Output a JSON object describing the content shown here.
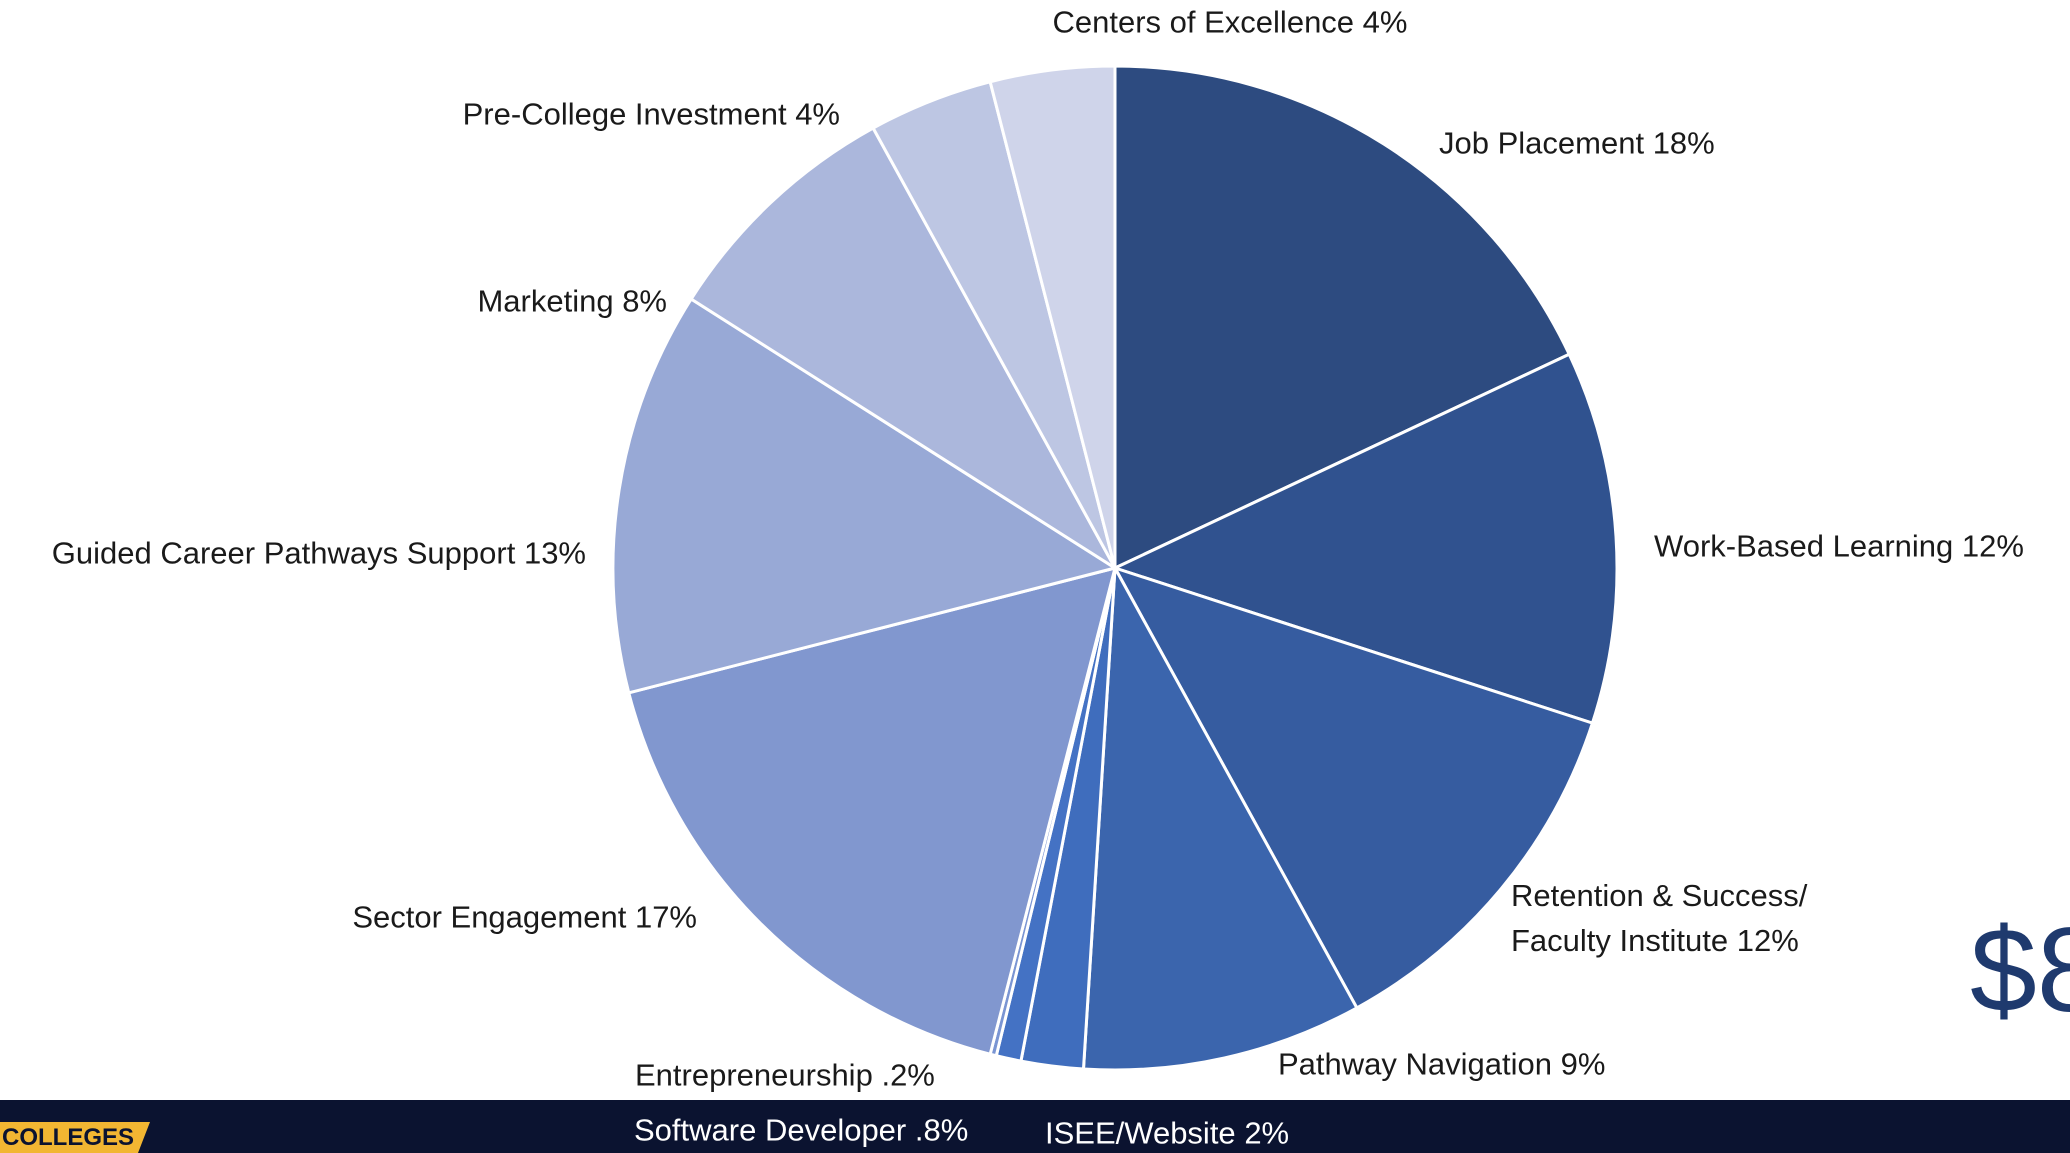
{
  "chart_data": {
    "type": "pie",
    "categories": [
      "Job Placement",
      "Work-Based Learning",
      "Retention & Success/ Faculty Institute",
      "Pathway Navigation",
      "ISEE/Website",
      "Software Developer ",
      "Entrepreneurship",
      "Sector Engagement",
      "Guided Career Pathways Support",
      "Marketing",
      "Pre-College Investment",
      "Centers of Excellence"
    ],
    "values": [
      18,
      12,
      12,
      9,
      2,
      0.8,
      0.2,
      17,
      13,
      8,
      4,
      4
    ],
    "value_labels": [
      "18%",
      "12%",
      "12%",
      "9%",
      "2%",
      ".8%",
      ".2%",
      "17%",
      "13%",
      "8%",
      "4%",
      "4%"
    ],
    "colors": [
      "#2d4b80",
      "#30528f",
      "#365ca0",
      "#3b65ad",
      "#3f6dbd",
      "#4472c4",
      "#7a95d3",
      "#8197cf",
      "#98a9d6",
      "#abb7dc",
      "#bdc6e3",
      "#cfd4ea"
    ]
  },
  "footer": {
    "logo": "COLLEGES"
  },
  "side_text": "$8"
}
